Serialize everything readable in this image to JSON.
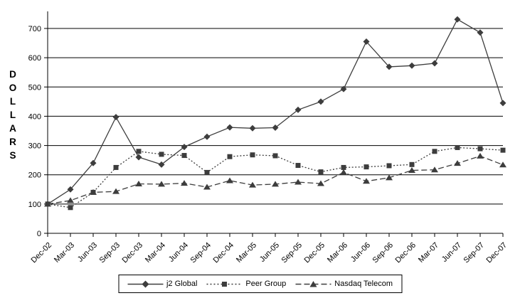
{
  "chart_data": {
    "type": "line",
    "title": "",
    "ylabel": "DOLLARS",
    "xlabel": "",
    "ylim": [
      0,
      750
    ],
    "yticks": [
      0,
      100,
      200,
      300,
      400,
      500,
      600,
      700
    ],
    "grid": "horizontal",
    "legend_position": "bottom",
    "categories": [
      "Dec-02",
      "Mar-03",
      "Jun-03",
      "Sep-03",
      "Dec-03",
      "Mar-04",
      "Jun-04",
      "Sep-04",
      "Dec-04",
      "Mar-05",
      "Jun-05",
      "Sep-05",
      "Dec-05",
      "Mar-06",
      "Jun-06",
      "Sep-06",
      "Dec-06",
      "Mar-07",
      "Jun-07",
      "Sep-07",
      "Dec-07"
    ],
    "series": [
      {
        "name": "j2 Global",
        "marker": "diamond",
        "line_style": "solid",
        "values": [
          100,
          150,
          240,
          397,
          260,
          235,
          295,
          330,
          362,
          359,
          361,
          422,
          450,
          493,
          655,
          569,
          573,
          581,
          731,
          686,
          445
        ]
      },
      {
        "name": "Peer Group",
        "marker": "square",
        "line_style": "dotted",
        "values": [
          100,
          88,
          140,
          225,
          280,
          270,
          266,
          208,
          262,
          268,
          265,
          232,
          210,
          225,
          227,
          231,
          235,
          280,
          293,
          289,
          284
        ]
      },
      {
        "name": "Nasdaq Telecom",
        "marker": "triangle",
        "line_style": "dashed",
        "values": [
          100,
          112,
          140,
          143,
          169,
          168,
          171,
          158,
          180,
          165,
          168,
          175,
          170,
          208,
          178,
          190,
          215,
          217,
          239,
          264,
          234
        ]
      }
    ],
    "colors": {
      "series": "#3d3d3d",
      "axis": "#000000",
      "background": "#ffffff",
      "text": "#000000"
    }
  }
}
